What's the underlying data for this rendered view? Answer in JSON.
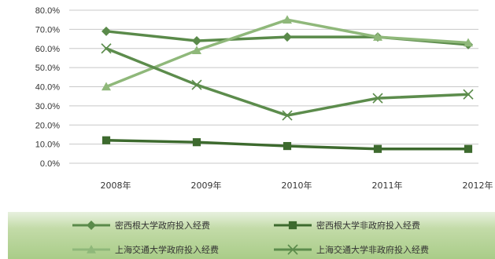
{
  "chart_data": {
    "type": "line",
    "categories": [
      "2008年",
      "2009年",
      "2010年",
      "2011年",
      "2012年"
    ],
    "y_ticks": [
      "0.0%",
      "10.0%",
      "20.0%",
      "30.0%",
      "40.0%",
      "50.0%",
      "60.0%",
      "70.0%",
      "80.0%"
    ],
    "ylim": [
      0,
      80
    ],
    "grid": true,
    "legend_position": "bottom",
    "series": [
      {
        "name": "密西根大学政府投入经费",
        "marker": "diamond",
        "color": "#5a8a4a",
        "values": [
          69,
          64,
          66,
          66,
          62
        ]
      },
      {
        "name": "密西根大学非政府投入经费",
        "marker": "square",
        "color": "#3d6a2e",
        "values": [
          12,
          11,
          9,
          7.5,
          7.5
        ]
      },
      {
        "name": "上海交通大学政府投入经费",
        "marker": "triangle",
        "color": "#8fb87a",
        "values": [
          40,
          59,
          75,
          66,
          63
        ]
      },
      {
        "name": "上海交通大学非政府投入经费",
        "marker": "x",
        "color": "#5c8c4c",
        "values": [
          60,
          41,
          25,
          34,
          36
        ]
      }
    ]
  }
}
